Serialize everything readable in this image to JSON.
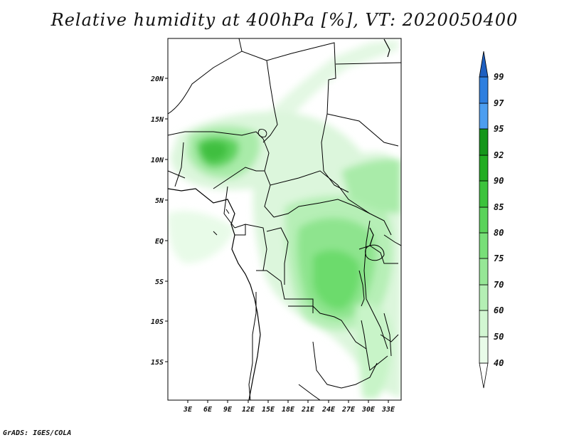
{
  "title": "Relative humidity at 400hPa [%], VT: 2020050400",
  "credit": "GrADS: IGES/COLA",
  "map": {
    "lat_labels": [
      "20N",
      "15N",
      "10N",
      "5N",
      "EQ",
      "5S",
      "10S",
      "15S"
    ],
    "lon_labels": [
      "3E",
      "6E",
      "9E",
      "12E",
      "15E",
      "18E",
      "21E",
      "24E",
      "27E",
      "30E",
      "33E"
    ]
  },
  "colorbar": {
    "levels": [
      "40",
      "50",
      "60",
      "70",
      "75",
      "80",
      "85",
      "90",
      "92",
      "95",
      "97",
      "99"
    ],
    "colors": [
      "#e8fbe8",
      "#d2f7d2",
      "#b4efb4",
      "#96e796",
      "#78df78",
      "#5ad35a",
      "#3cc33c",
      "#22ad22",
      "#14961a",
      "#4d9ef0",
      "#2f7fdf",
      "#1e5fc0"
    ]
  }
}
